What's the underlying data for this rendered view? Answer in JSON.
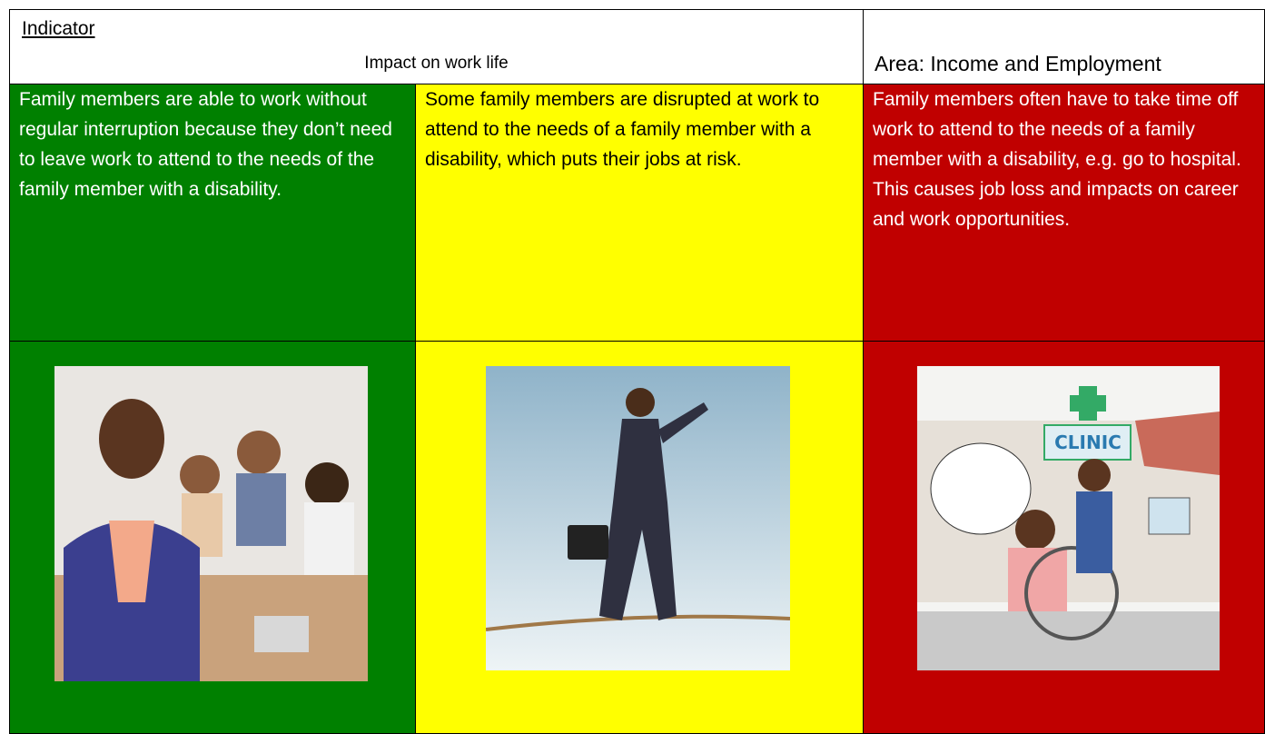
{
  "header": {
    "indicator_label": "Indicator",
    "indicator": "Impact on work life",
    "area": "Area: Income and Employment"
  },
  "levels": [
    {
      "description": "Family members are able to work without regular interruption because they don’t need to leave work to attend to the needs of the family member with a disability."
    },
    {
      "description": "Some family members are disrupted at work to attend to the needs of a family member with a disability, which puts their jobs at risk."
    },
    {
      "description": "Family members often have to take time off work to attend to the needs of a family member with a disability, e.g. go to hospital. This causes job loss and impacts on career and work opportunities."
    }
  ],
  "images": [
    {
      "sign_text": "CLINIC"
    }
  ]
}
